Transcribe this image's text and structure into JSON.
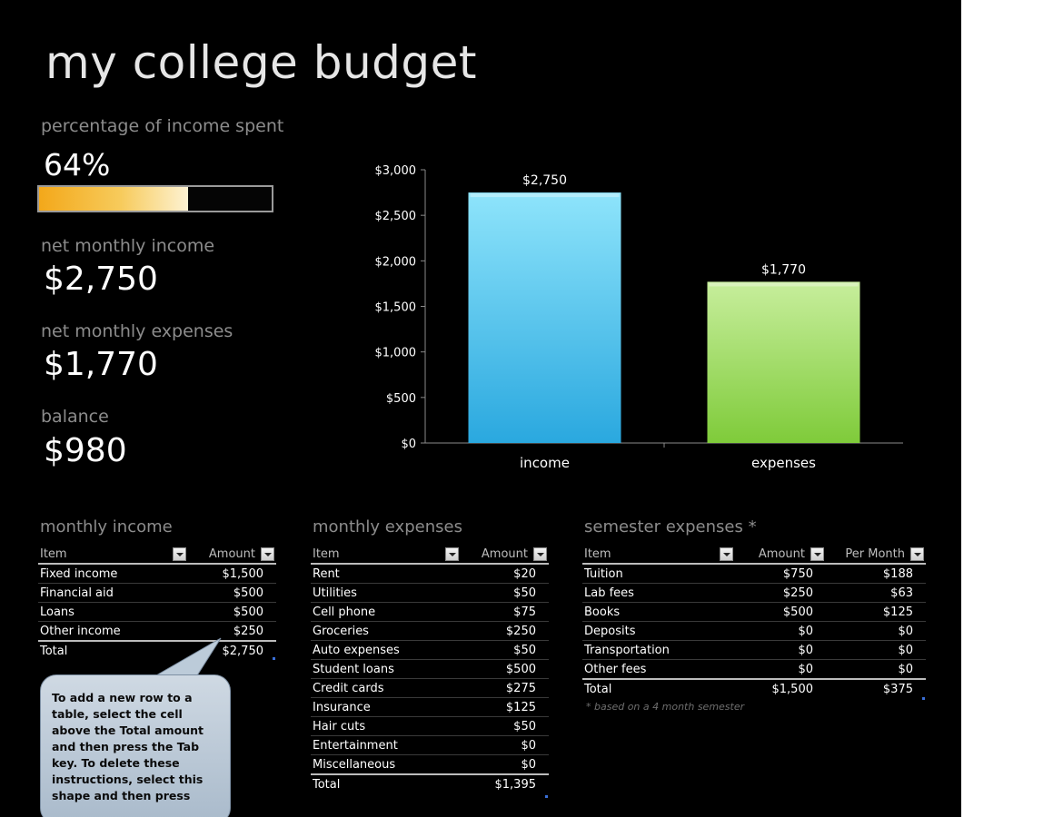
{
  "title": "my college budget",
  "kpis": {
    "percentage_label": "percentage of income spent",
    "percentage_value": "64%",
    "percentage_fraction": 0.64,
    "income_label": "net monthly income",
    "income_value": "$2,750",
    "expenses_label": "net monthly expenses",
    "expenses_value": "$1,770",
    "balance_label": "balance",
    "balance_value": "$980"
  },
  "colors": {
    "income_bar": "#3fb7ea",
    "expenses_bar": "#8fd34e",
    "progress": "#f3a81a"
  },
  "chart_data": {
    "type": "bar",
    "categories": [
      "income",
      "expenses"
    ],
    "values": [
      2750,
      1770
    ],
    "data_labels": [
      "$2,750",
      "$1,770"
    ],
    "ylim": [
      0,
      3000
    ],
    "yticks": [
      0,
      500,
      1000,
      1500,
      2000,
      2500,
      3000
    ],
    "ytick_labels": [
      "$0",
      "$500",
      "$1,000",
      "$1,500",
      "$2,000",
      "$2,500",
      "$3,000"
    ],
    "grid": false,
    "legend": "none",
    "title": "",
    "xlabel": "",
    "ylabel": ""
  },
  "monthly_income": {
    "title": "monthly income",
    "headers": [
      "Item",
      "Amount"
    ],
    "rows": [
      [
        "Fixed income",
        "$1,500"
      ],
      [
        "Financial aid",
        "$500"
      ],
      [
        "Loans",
        "$500"
      ],
      [
        "Other income",
        "$250"
      ]
    ],
    "total": [
      "Total",
      "$2,750"
    ]
  },
  "monthly_expenses": {
    "title": "monthly expenses",
    "headers": [
      "Item",
      "Amount"
    ],
    "rows": [
      [
        "Rent",
        "$20"
      ],
      [
        "Utilities",
        "$50"
      ],
      [
        "Cell phone",
        "$75"
      ],
      [
        "Groceries",
        "$250"
      ],
      [
        "Auto expenses",
        "$50"
      ],
      [
        "Student loans",
        "$500"
      ],
      [
        "Credit cards",
        "$275"
      ],
      [
        "Insurance",
        "$125"
      ],
      [
        "Hair cuts",
        "$50"
      ],
      [
        "Entertainment",
        "$0"
      ],
      [
        "Miscellaneous",
        "$0"
      ]
    ],
    "total": [
      "Total",
      "$1,395"
    ]
  },
  "semester_expenses": {
    "title": "semester expenses *",
    "headers": [
      "Item",
      "Amount",
      "Per Month"
    ],
    "rows": [
      [
        "Tuition",
        "$750",
        "$188"
      ],
      [
        "Lab fees",
        "$250",
        "$63"
      ],
      [
        "Books",
        "$500",
        "$125"
      ],
      [
        "Deposits",
        "$0",
        "$0"
      ],
      [
        "Transportation",
        "$0",
        "$0"
      ],
      [
        "Other fees",
        "$0",
        "$0"
      ]
    ],
    "total": [
      "Total",
      "$1,500",
      "$375"
    ],
    "note": "* based on a 4 month semester"
  },
  "callout": {
    "text": "To add a new row to a table, select the cell above the Total amount and then press the Tab key. To delete these instructions, select this shape and then press"
  }
}
